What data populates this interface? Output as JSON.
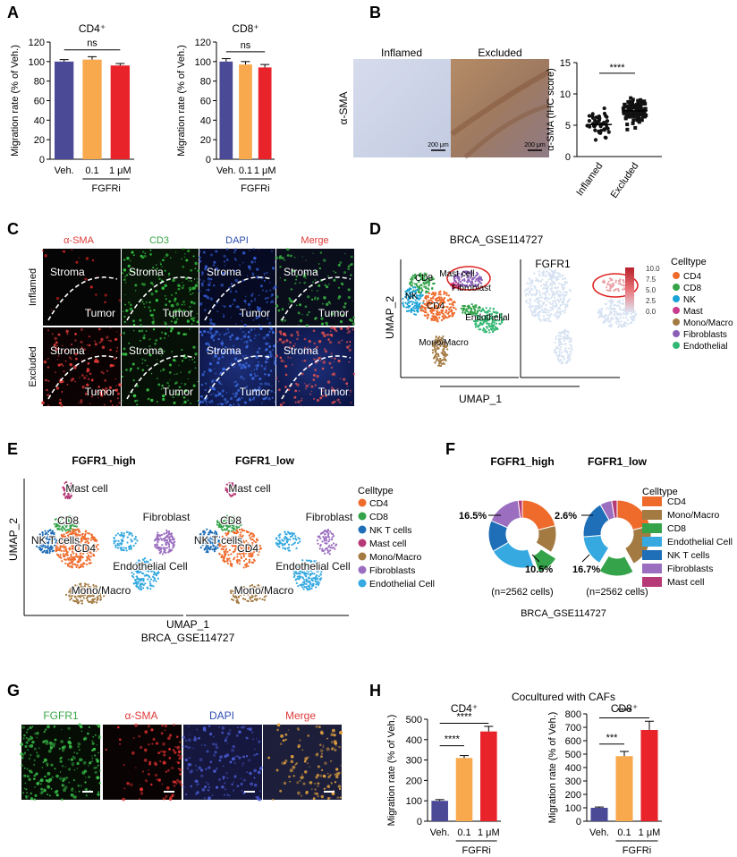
{
  "panels": {
    "A": "A",
    "B": "B",
    "C": "C",
    "D": "D",
    "E": "E",
    "F": "F",
    "G": "G",
    "H": "H"
  },
  "colors": {
    "veh": "#4a4a96",
    "low": "#f9a94d",
    "high": "#e8232a",
    "cd4": "#ef6b2c",
    "mono": "#a37a42",
    "cd8": "#34a34a",
    "endo": "#35a9e0",
    "nkt": "#1f6eb8",
    "fib": "#9b6ec0",
    "mast": "#b73a78",
    "nk": "#1aa3d6",
    "d_endo": "#33b873",
    "d_fib": "#8b5fb8",
    "d_mast": "#c83d8c"
  },
  "common": {
    "ylabel": "Migration rate (% of Veh.)",
    "xcats": [
      "Veh.",
      "0.1",
      "1 μM"
    ],
    "drug": "FGFRi",
    "ns": "ns"
  },
  "chart_data": [
    {
      "panel": "A",
      "type": "bar",
      "title": "CD4⁺",
      "categories": [
        "Veh.",
        "0.1",
        "1 μM"
      ],
      "values": [
        100,
        102,
        96
      ],
      "errors": [
        2,
        3,
        2
      ],
      "ylabel": "Migration rate (% of Veh.)",
      "ylim": [
        0,
        120
      ],
      "yticks": [
        0,
        20,
        40,
        60,
        80,
        100,
        120
      ],
      "annotations": [
        "ns"
      ],
      "xlabel": "FGFRi"
    },
    {
      "panel": "A",
      "type": "bar",
      "title": "CD8⁺",
      "categories": [
        "Veh.",
        "0.1",
        "1 μM"
      ],
      "values": [
        100,
        97,
        94
      ],
      "errors": [
        3,
        3,
        3
      ],
      "ylabel": "Migration rate (% of Veh.)",
      "ylim": [
        0,
        120
      ],
      "yticks": [
        0,
        20,
        40,
        60,
        80,
        100,
        120
      ],
      "annotations": [
        "ns"
      ],
      "xlabel": "FGFRi"
    },
    {
      "panel": "B",
      "type": "scatter",
      "categories": [
        "Inflamed",
        "Excluded"
      ],
      "mean": [
        5.1,
        7.3
      ],
      "sd": [
        2.2,
        2.3
      ],
      "ylabel": "α-SMA (IHC score)",
      "ylim": [
        0,
        15
      ],
      "yticks": [
        0,
        5,
        10,
        15
      ],
      "annotations": [
        "****"
      ]
    },
    {
      "panel": "F",
      "type": "pie",
      "title": "FGFR1_high",
      "labels": [
        "CD4",
        "Mono/Macro",
        "CD8",
        "Endothelial Cell",
        "NK T cells",
        "Fibroblasts",
        "Mast cell"
      ],
      "values": [
        21,
        13,
        10.5,
        22,
        15,
        16.5,
        2
      ],
      "annotations": [
        "16.5%",
        "10.5%"
      ]
    },
    {
      "panel": "F",
      "type": "pie",
      "title": "FGFR1_low",
      "labels": [
        "CD4",
        "Mono/Macro",
        "CD8",
        "Endothelial Cell",
        "NK T cells",
        "Fibroblasts",
        "Mast cell"
      ],
      "values": [
        21,
        21,
        16.7,
        15,
        18,
        5.7,
        2.6
      ],
      "annotations": [
        "2.6%",
        "16.7%"
      ]
    },
    {
      "panel": "H",
      "type": "bar",
      "title": "CD4⁺",
      "categories": [
        "Veh.",
        "0.1",
        "1 μM"
      ],
      "values": [
        100,
        310,
        440
      ],
      "errors": [
        6,
        12,
        25
      ],
      "ylabel": "Migration rate (% of Veh.)",
      "ylim": [
        0,
        500
      ],
      "yticks": [
        0,
        100,
        200,
        300,
        400,
        500
      ],
      "annotations": [
        "****",
        "****"
      ],
      "xlabel": "FGFRi"
    },
    {
      "panel": "H",
      "type": "bar",
      "title": "CD8⁺",
      "categories": [
        "Veh.",
        "0.1",
        "1 μM"
      ],
      "values": [
        100,
        485,
        680
      ],
      "errors": [
        6,
        35,
        65
      ],
      "ylabel": "Migration rate (% of Veh.)",
      "ylim": [
        0,
        800
      ],
      "yticks": [
        0,
        100,
        200,
        300,
        400,
        500,
        600,
        700,
        800
      ],
      "annotations": [
        "***",
        "****"
      ],
      "xlabel": "FGFRi"
    }
  ],
  "B": {
    "img_left": "Inflamed",
    "img_right": "Excluded",
    "ylabel": "α-SMA",
    "scale": "200 μm",
    "sig": "****"
  },
  "C": {
    "channels": [
      "α-SMA",
      "CD3",
      "DAPI",
      "Merge"
    ],
    "rows": [
      "Inflamed",
      "Excluded"
    ],
    "stroma": "Stroma",
    "tumor": "Tumor"
  },
  "D": {
    "title": "BRCA_GSE114727",
    "fgfr1": "FGFR1",
    "xlabel": "UMAP_1",
    "ylabel": "UMAP_2",
    "scale_ticks": [
      "10.0",
      "7.5",
      "5.0",
      "2.5",
      "0.0"
    ],
    "legend_title": "Celltype",
    "legend": [
      "CD4",
      "CD8",
      "NK",
      "Mast",
      "Mono/Macro",
      "Fibroblasts",
      "Endothelial"
    ],
    "cl": {
      "cd8": "CD8",
      "mast": "Mast cell",
      "fib": "Fibroblast",
      "nk": "NK",
      "cd4": "CD4",
      "endo": "Endothelial",
      "mono": "Mono/Macro"
    }
  },
  "E": {
    "titles": [
      "FGFR1_high",
      "FGFR1_low"
    ],
    "xlabel": "UMAP_1",
    "ylabel": "UMAP_2",
    "dataset": "BRCA_GSE114727",
    "legend_title": "Celltype",
    "legend": [
      "CD4",
      "CD8",
      "NK T cells",
      "Mast cell",
      "Mono/Macro",
      "Fibroblasts",
      "Endothelial Cell"
    ],
    "cl": {
      "mast": "Mast cell",
      "cd8": "CD8",
      "nkt": "NK T cells",
      "cd4": "CD4",
      "fib": "Fibroblast",
      "endo": "Endothelial Cell",
      "mono": "Mono/Macro"
    }
  },
  "F": {
    "cells": "(n=2562 cells)",
    "dataset": "BRCA_GSE114727",
    "legend_title": "Celltype",
    "legend": [
      "CD4",
      "Mono/Macro",
      "CD8",
      "Endothelial Cell",
      "NK T cells",
      "Fibroblasts",
      "Mast cell"
    ]
  },
  "G": {
    "channels": [
      "FGFR1",
      "α-SMA",
      "DAPI",
      "Merge"
    ]
  },
  "H": {
    "title": "Cocultured with CAFs"
  }
}
